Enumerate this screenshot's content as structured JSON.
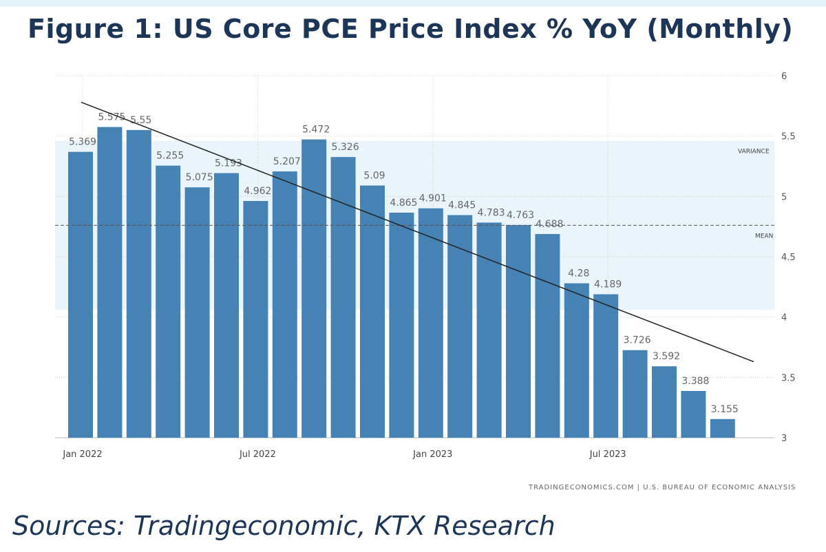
{
  "title": "Figure 1: US Core PCE Price Index % YoY (Monthly)",
  "source": "Sources: Tradingeconomic,  KTX Research",
  "credit": "TRADINGECONOMICS.COM | U.S. BUREAU OF ECONOMIC ANALYSIS",
  "chart_data": {
    "type": "bar",
    "title": "",
    "xlabel": "",
    "ylabel": "",
    "ylim": [
      3,
      6
    ],
    "yticks": [
      "3",
      "3.5",
      "4",
      "4.5",
      "5",
      "5.5",
      "6"
    ],
    "xtick_labels": [
      "Jan 2022",
      "Jul 2022",
      "Jan 2023",
      "Jul 2023"
    ],
    "xtick_indices": [
      0,
      6,
      12,
      18
    ],
    "categories": [
      "Jan 2022",
      "Feb 2022",
      "Mar 2022",
      "Apr 2022",
      "May 2022",
      "Jun 2022",
      "Jul 2022",
      "Aug 2022",
      "Sep 2022",
      "Oct 2022",
      "Nov 2022",
      "Dec 2022",
      "Jan 2023",
      "Feb 2023",
      "Mar 2023",
      "Apr 2023",
      "May 2023",
      "Jun 2023",
      "Jul 2023",
      "Aug 2023",
      "Sep 2023",
      "Oct 2023",
      "Nov 2023"
    ],
    "values": [
      5.369,
      5.575,
      5.55,
      5.255,
      5.075,
      5.193,
      4.962,
      5.207,
      5.472,
      5.326,
      5.09,
      4.865,
      4.901,
      4.845,
      4.783,
      4.763,
      4.688,
      4.28,
      4.189,
      3.726,
      3.592,
      3.388,
      3.155
    ],
    "mean": {
      "label": "MEAN",
      "value": 4.76
    },
    "variance_band": {
      "label": "VARIANCE",
      "range": [
        4.06,
        5.46
      ]
    },
    "trendline": {
      "start": 5.78,
      "end": 3.63
    },
    "bar_color": "#4682b4",
    "grid": true
  }
}
